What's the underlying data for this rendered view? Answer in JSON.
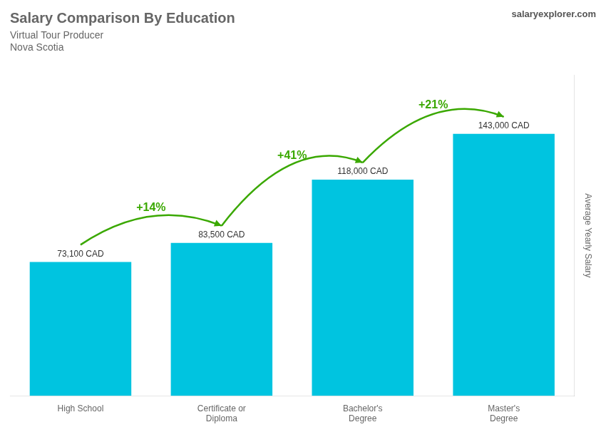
{
  "chart_data": {
    "type": "bar",
    "title": "Salary Comparison By Education",
    "subtitle": [
      "Virtual Tour Producer",
      "Nova Scotia"
    ],
    "ylabel": "Average Yearly Salary",
    "categories": [
      "High School",
      "Certificate or\nDiploma",
      "Bachelor's\nDegree",
      "Master's\nDegree"
    ],
    "values": [
      73100,
      83500,
      118000,
      143000
    ],
    "value_labels": [
      "73,100 CAD",
      "83,500 CAD",
      "118,000 CAD",
      "143,000 CAD"
    ],
    "data_labels": true,
    "color": "#00c4e0",
    "ylim": [
      0,
      175000
    ],
    "grid": false,
    "tick_labels": "x",
    "annotations": [
      {
        "text": "+14%",
        "from": "High School",
        "to": "Certificate or\nDiploma"
      },
      {
        "text": "+41%",
        "from": "Certificate or\nDiploma",
        "to": "Bachelor's\nDegree"
      },
      {
        "text": "+21%",
        "from": "Bachelor's\nDegree",
        "to": "Master's\nDegree"
      },
      {
        "text": "salaryexplorer.com"
      }
    ]
  }
}
